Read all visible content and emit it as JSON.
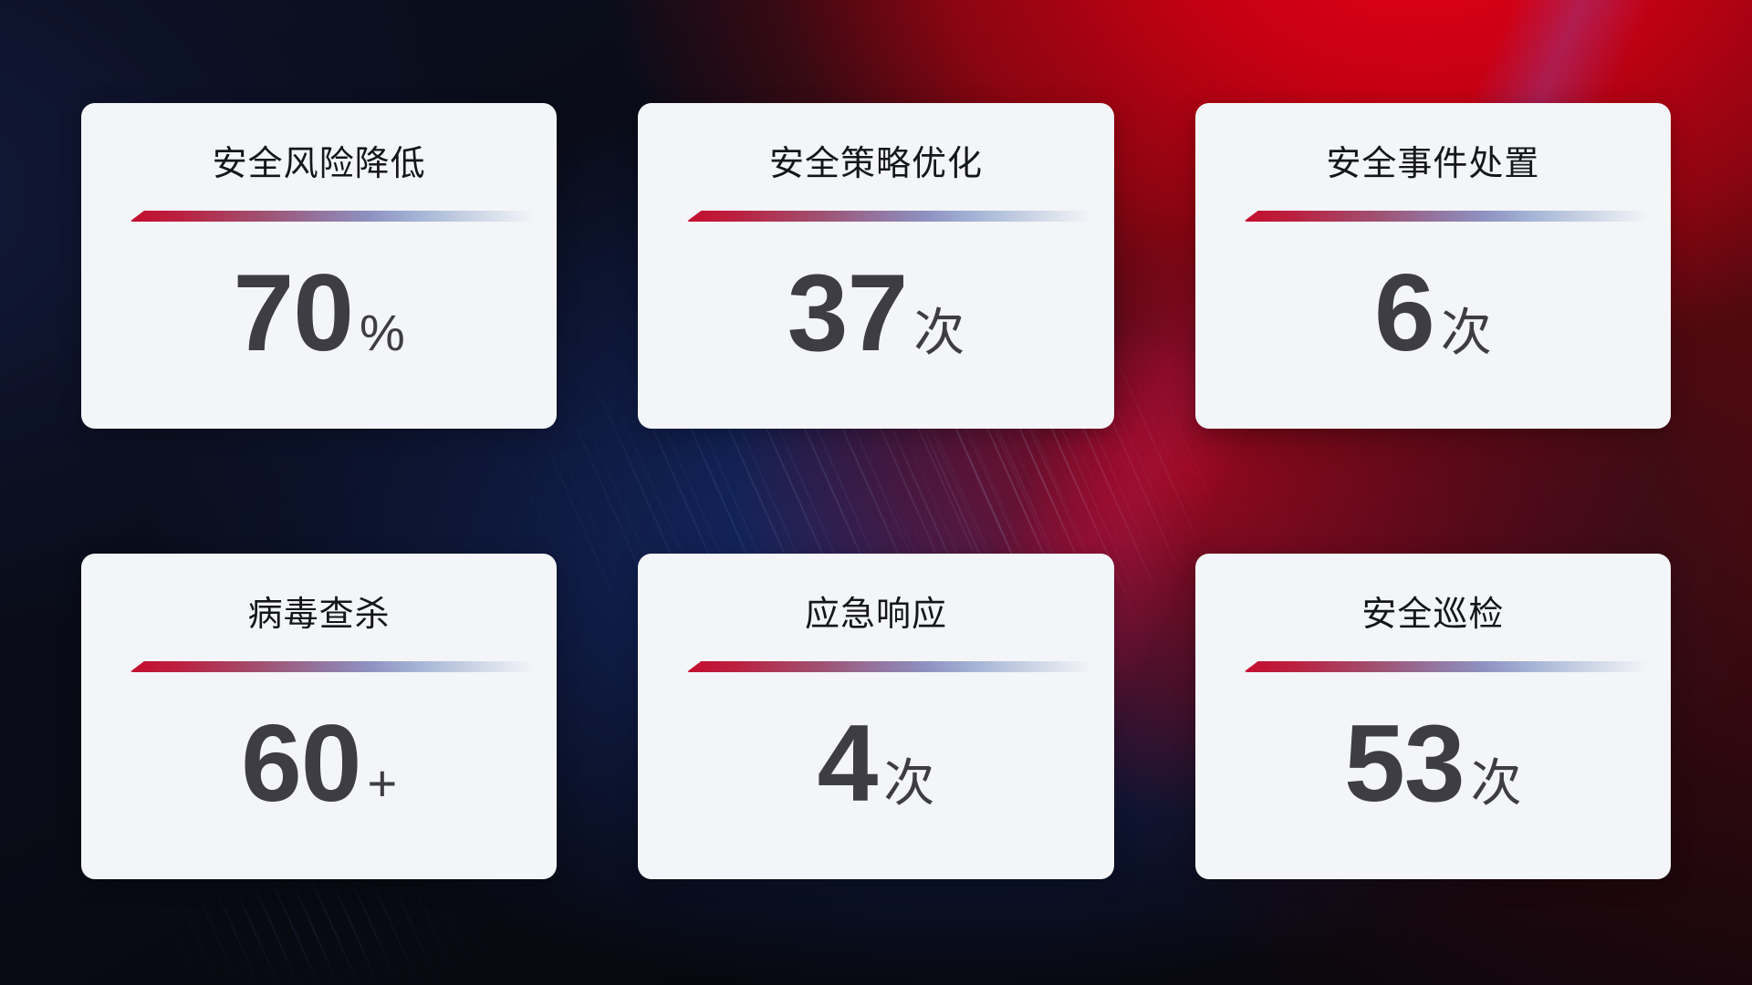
{
  "cards": [
    {
      "title": "安全风险降低",
      "value": "70",
      "unit": "%"
    },
    {
      "title": "安全策略优化",
      "value": "37",
      "unit": "次"
    },
    {
      "title": "安全事件处置",
      "value": "6",
      "unit": "次"
    },
    {
      "title": "病毒查杀",
      "value": "60",
      "unit": "+"
    },
    {
      "title": "应急响应",
      "value": "4",
      "unit": "次"
    },
    {
      "title": "安全巡检",
      "value": "53",
      "unit": "次"
    }
  ],
  "colors": {
    "accent_red": "#c40e2e",
    "divider_blue": "#a5b4d6",
    "card_background": "#f4f5f8",
    "title_text": "#15161a",
    "value_text": "#3d3d43",
    "background_navy": "#0b0e1e",
    "background_red": "#c50013",
    "background_blue_glow": "#18307a"
  }
}
